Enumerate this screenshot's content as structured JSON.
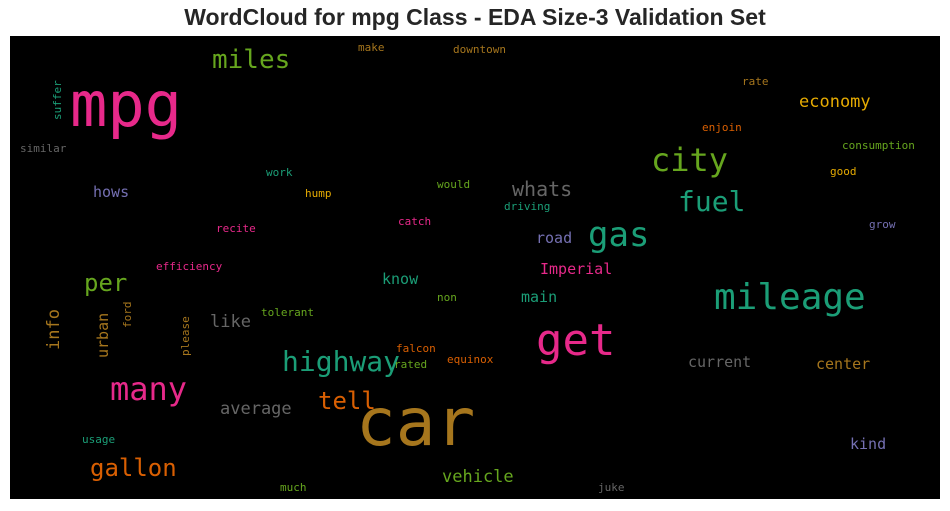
{
  "chart_data": {
    "type": "wordcloud",
    "title": "WordCloud for mpg Class - EDA Size-3 Validation Set",
    "background": "#000000",
    "words": [
      {
        "text": "car",
        "color": "#a6761d"
      },
      {
        "text": "mpg",
        "color": "#e7298a"
      },
      {
        "text": "get",
        "color": "#e7298a"
      },
      {
        "text": "mileage",
        "color": "#1b9e77"
      },
      {
        "text": "gas",
        "color": "#1b9e77"
      },
      {
        "text": "city",
        "color": "#66a61e"
      },
      {
        "text": "fuel",
        "color": "#1b9e77"
      },
      {
        "text": "many",
        "color": "#e7298a"
      },
      {
        "text": "highway",
        "color": "#1b9e77"
      },
      {
        "text": "miles",
        "color": "#66a61e"
      },
      {
        "text": "gallon",
        "color": "#d95f02"
      },
      {
        "text": "per",
        "color": "#66a61e"
      },
      {
        "text": "tell",
        "color": "#d95f02"
      },
      {
        "text": "whats",
        "color": "#666666"
      },
      {
        "text": "economy",
        "color": "#e6ab02"
      },
      {
        "text": "info",
        "color": "#a6761d"
      },
      {
        "text": "like",
        "color": "#666666"
      },
      {
        "text": "average",
        "color": "#666666"
      },
      {
        "text": "vehicle",
        "color": "#66a61e"
      },
      {
        "text": "Imperial",
        "color": "#e7298a"
      },
      {
        "text": "know",
        "color": "#1b9e77"
      },
      {
        "text": "main",
        "color": "#1b9e77"
      },
      {
        "text": "road",
        "color": "#7570b3"
      },
      {
        "text": "current",
        "color": "#666666"
      },
      {
        "text": "center",
        "color": "#a6761d"
      },
      {
        "text": "kind",
        "color": "#7570b3"
      },
      {
        "text": "hows",
        "color": "#7570b3"
      },
      {
        "text": "urban",
        "color": "#a6761d"
      },
      {
        "text": "efficiency",
        "color": "#e7298a"
      },
      {
        "text": "recite",
        "color": "#e7298a"
      },
      {
        "text": "catch",
        "color": "#e7298a"
      },
      {
        "text": "driving",
        "color": "#1b9e77"
      },
      {
        "text": "would",
        "color": "#66a61e"
      },
      {
        "text": "hump",
        "color": "#e6ab02"
      },
      {
        "text": "work",
        "color": "#1b9e77"
      },
      {
        "text": "make",
        "color": "#a6761d"
      },
      {
        "text": "downtown",
        "color": "#a6761d"
      },
      {
        "text": "rate",
        "color": "#a6761d"
      },
      {
        "text": "enjoin",
        "color": "#d95f02"
      },
      {
        "text": "consumption",
        "color": "#66a61e"
      },
      {
        "text": "good",
        "color": "#e6ab02"
      },
      {
        "text": "grow",
        "color": "#7570b3"
      },
      {
        "text": "suffer",
        "color": "#1b9e77"
      },
      {
        "text": "similar",
        "color": "#666666"
      },
      {
        "text": "ford",
        "color": "#a6761d"
      },
      {
        "text": "please",
        "color": "#a6761d"
      },
      {
        "text": "tolerant",
        "color": "#66a61e"
      },
      {
        "text": "non",
        "color": "#66a61e"
      },
      {
        "text": "falcon",
        "color": "#d95f02"
      },
      {
        "text": "equinox",
        "color": "#d95f02"
      },
      {
        "text": "rated",
        "color": "#66a61e"
      },
      {
        "text": "usage",
        "color": "#1b9e77"
      },
      {
        "text": "much",
        "color": "#66a61e"
      },
      {
        "text": "juke",
        "color": "#666666"
      }
    ]
  }
}
